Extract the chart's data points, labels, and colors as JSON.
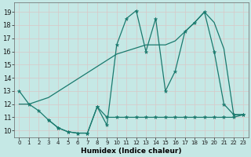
{
  "background_color": "#c5e8e5",
  "grid_color": "#b8d8d5",
  "line_color": "#1a7a6e",
  "x_label": "Humidex (Indice chaleur)",
  "ylim": [
    9.5,
    19.7
  ],
  "xlim": [
    -0.5,
    23.5
  ],
  "yticks": [
    10,
    11,
    12,
    13,
    14,
    15,
    16,
    17,
    18,
    19
  ],
  "xticks": [
    0,
    1,
    2,
    3,
    4,
    5,
    6,
    7,
    8,
    9,
    10,
    11,
    12,
    13,
    14,
    15,
    16,
    17,
    18,
    19,
    20,
    21,
    22,
    23
  ],
  "series_jagged_x": [
    0,
    1,
    2,
    3,
    4,
    5,
    6,
    7,
    8,
    9,
    10,
    11,
    12,
    13,
    14,
    15,
    16,
    17,
    18,
    19,
    20,
    21,
    22,
    23
  ],
  "series_jagged_y": [
    13.0,
    12.0,
    11.5,
    10.8,
    10.2,
    9.9,
    9.8,
    9.8,
    11.8,
    10.4,
    16.5,
    18.5,
    19.1,
    16.0,
    18.5,
    13.0,
    14.5,
    17.5,
    18.2,
    19.0,
    16.0,
    12.0,
    11.2,
    11.2
  ],
  "series_trend_x": [
    0,
    1,
    3,
    10,
    13,
    14,
    15,
    16,
    17,
    18,
    19,
    20,
    21,
    22,
    23
  ],
  "series_trend_y": [
    12.0,
    12.0,
    12.5,
    15.8,
    16.5,
    16.5,
    16.5,
    16.8,
    17.5,
    18.2,
    19.0,
    18.2,
    16.2,
    11.2,
    11.2
  ],
  "series_low_x": [
    3,
    4,
    5,
    6,
    7,
    8,
    9,
    10,
    11,
    12,
    13,
    14,
    15,
    16,
    17,
    18,
    19,
    20,
    21,
    22,
    23
  ],
  "series_low_y": [
    10.8,
    10.2,
    9.9,
    9.8,
    9.8,
    11.8,
    11.0,
    11.0,
    11.0,
    11.0,
    11.0,
    11.0,
    11.0,
    11.0,
    11.0,
    11.0,
    11.0,
    11.0,
    11.0,
    11.0,
    11.2
  ]
}
